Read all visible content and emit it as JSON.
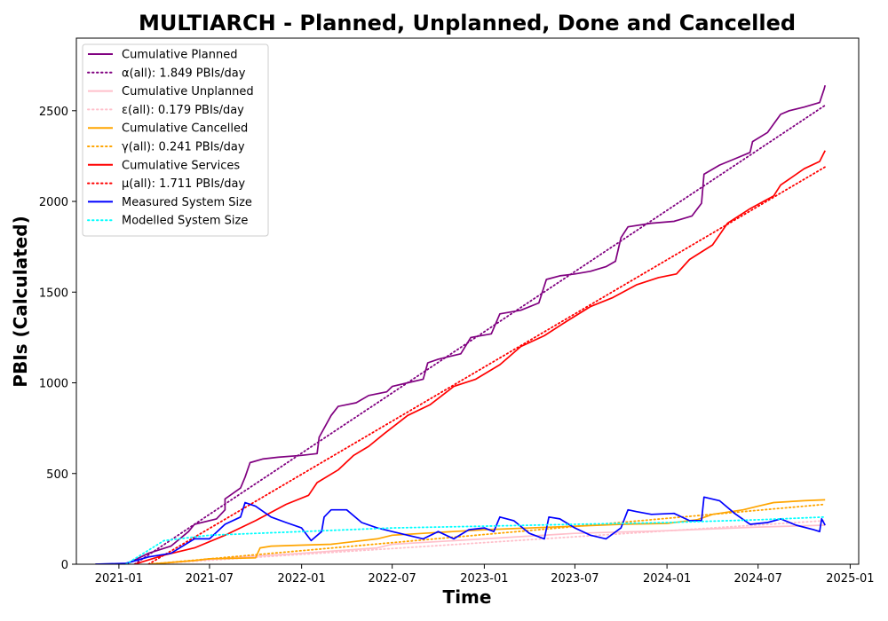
{
  "chart_data": {
    "type": "line",
    "title": "MULTIARCH - Planned, Unplanned, Done  and Cancelled",
    "xlabel": "Time",
    "ylabel": "PBIs (Calculated)",
    "xlim": [
      "2020-10-08",
      "2025-01-18"
    ],
    "ylim": [
      0,
      2900
    ],
    "x_ticks": [
      "2021-01",
      "2021-07",
      "2022-01",
      "2022-07",
      "2023-01",
      "2023-07",
      "2024-01",
      "2024-07",
      "2025-01"
    ],
    "y_ticks": [
      0,
      500,
      1000,
      1500,
      2000,
      2500
    ],
    "grid": false,
    "legend_position": "top-left",
    "series": [
      {
        "name": "Cumulative Planned",
        "style": "solid",
        "color": "#800080",
        "points": [
          [
            "2020-11-15",
            0
          ],
          [
            "2021-01-15",
            0
          ],
          [
            "2021-03-01",
            60
          ],
          [
            "2021-04-15",
            100
          ],
          [
            "2021-05-20",
            180
          ],
          [
            "2021-06-01",
            220
          ],
          [
            "2021-07-15",
            250
          ],
          [
            "2021-08-01",
            300
          ],
          [
            "2021-08-01",
            360
          ],
          [
            "2021-09-01",
            420
          ],
          [
            "2021-09-10",
            480
          ],
          [
            "2021-09-20",
            560
          ],
          [
            "2021-10-15",
            580
          ],
          [
            "2021-11-15",
            590
          ],
          [
            "2022-01-01",
            600
          ],
          [
            "2022-02-01",
            610
          ],
          [
            "2022-02-05",
            700
          ],
          [
            "2022-03-01",
            820
          ],
          [
            "2022-03-15",
            870
          ],
          [
            "2022-04-20",
            890
          ],
          [
            "2022-05-15",
            930
          ],
          [
            "2022-06-20",
            950
          ],
          [
            "2022-07-01",
            980
          ],
          [
            "2022-08-01",
            1000
          ],
          [
            "2022-09-01",
            1020
          ],
          [
            "2022-09-10",
            1110
          ],
          [
            "2022-10-01",
            1130
          ],
          [
            "2022-11-15",
            1160
          ],
          [
            "2022-12-05",
            1250
          ],
          [
            "2023-01-15",
            1270
          ],
          [
            "2023-02-01",
            1380
          ],
          [
            "2023-03-15",
            1400
          ],
          [
            "2023-04-20",
            1440
          ],
          [
            "2023-05-05",
            1570
          ],
          [
            "2023-06-01",
            1590
          ],
          [
            "2023-07-01",
            1600
          ],
          [
            "2023-08-01",
            1615
          ],
          [
            "2023-09-01",
            1640
          ],
          [
            "2023-09-20",
            1670
          ],
          [
            "2023-10-01",
            1800
          ],
          [
            "2023-10-15",
            1860
          ],
          [
            "2023-12-01",
            1880
          ],
          [
            "2024-01-15",
            1890
          ],
          [
            "2024-02-20",
            1920
          ],
          [
            "2024-03-10",
            1990
          ],
          [
            "2024-03-15",
            2150
          ],
          [
            "2024-04-15",
            2200
          ],
          [
            "2024-05-20",
            2240
          ],
          [
            "2024-06-15",
            2270
          ],
          [
            "2024-06-20",
            2330
          ],
          [
            "2024-07-20",
            2380
          ],
          [
            "2024-08-15",
            2480
          ],
          [
            "2024-09-01",
            2500
          ],
          [
            "2024-10-01",
            2520
          ],
          [
            "2024-11-01",
            2545
          ],
          [
            "2024-11-10",
            2620
          ],
          [
            "2024-11-12",
            2640
          ]
        ]
      },
      {
        "name": "α(all): 1.849 PBIs/day",
        "style": "dotted",
        "color": "#800080",
        "points": [
          [
            "2021-02-01",
            0
          ],
          [
            "2024-11-12",
            2530
          ]
        ]
      },
      {
        "name": "Cumulative Unplanned",
        "style": "solid",
        "color": "#ffc0cb",
        "points": [
          [
            "2021-03-01",
            0
          ],
          [
            "2021-06-01",
            20
          ],
          [
            "2021-09-01",
            40
          ],
          [
            "2022-01-01",
            60
          ],
          [
            "2022-06-01",
            90
          ],
          [
            "2022-07-01",
            110
          ],
          [
            "2023-01-01",
            140
          ],
          [
            "2023-07-01",
            170
          ],
          [
            "2024-01-01",
            185
          ],
          [
            "2024-07-01",
            205
          ],
          [
            "2024-11-12",
            215
          ]
        ]
      },
      {
        "name": "ε(all): 0.179 PBIs/day",
        "style": "dotted",
        "color": "#ffc0cb",
        "points": [
          [
            "2021-03-01",
            0
          ],
          [
            "2024-11-12",
            240
          ]
        ]
      },
      {
        "name": "Cumulative Cancelled",
        "style": "solid",
        "color": "#ffa500",
        "points": [
          [
            "2021-03-01",
            0
          ],
          [
            "2021-04-15",
            10
          ],
          [
            "2021-06-01",
            20
          ],
          [
            "2021-07-01",
            30
          ],
          [
            "2021-10-01",
            35
          ],
          [
            "2021-10-10",
            90
          ],
          [
            "2021-11-01",
            100
          ],
          [
            "2022-01-01",
            105
          ],
          [
            "2022-03-01",
            110
          ],
          [
            "2022-06-01",
            140
          ],
          [
            "2022-07-01",
            160
          ],
          [
            "2022-09-01",
            170
          ],
          [
            "2023-01-01",
            190
          ],
          [
            "2023-07-01",
            210
          ],
          [
            "2023-10-01",
            220
          ],
          [
            "2024-01-01",
            225
          ],
          [
            "2024-03-01",
            245
          ],
          [
            "2024-04-01",
            275
          ],
          [
            "2024-06-01",
            300
          ],
          [
            "2024-07-01",
            320
          ],
          [
            "2024-08-01",
            340
          ],
          [
            "2024-10-01",
            350
          ],
          [
            "2024-11-12",
            355
          ]
        ]
      },
      {
        "name": "γ(all): 0.241 PBIs/day",
        "style": "dotted",
        "color": "#ffa500",
        "points": [
          [
            "2021-03-01",
            0
          ],
          [
            "2024-11-12",
            330
          ]
        ]
      },
      {
        "name": "Cumulative Services",
        "style": "solid",
        "color": "#ff0000",
        "points": [
          [
            "2021-02-01",
            0
          ],
          [
            "2021-04-01",
            50
          ],
          [
            "2021-06-01",
            90
          ],
          [
            "2021-08-01",
            160
          ],
          [
            "2021-10-01",
            240
          ],
          [
            "2021-12-01",
            330
          ],
          [
            "2022-01-15",
            380
          ],
          [
            "2022-02-01",
            450
          ],
          [
            "2022-03-15",
            520
          ],
          [
            "2022-04-15",
            600
          ],
          [
            "2022-05-15",
            650
          ],
          [
            "2022-06-15",
            720
          ],
          [
            "2022-08-01",
            820
          ],
          [
            "2022-09-15",
            880
          ],
          [
            "2022-11-01",
            980
          ],
          [
            "2022-12-15",
            1020
          ],
          [
            "2023-02-01",
            1100
          ],
          [
            "2023-03-15",
            1200
          ],
          [
            "2023-05-01",
            1260
          ],
          [
            "2023-06-15",
            1340
          ],
          [
            "2023-08-01",
            1420
          ],
          [
            "2023-09-15",
            1470
          ],
          [
            "2023-11-01",
            1540
          ],
          [
            "2023-12-15",
            1580
          ],
          [
            "2024-01-20",
            1600
          ],
          [
            "2024-02-15",
            1680
          ],
          [
            "2024-04-01",
            1760
          ],
          [
            "2024-05-01",
            1880
          ],
          [
            "2024-06-15",
            1960
          ],
          [
            "2024-08-01",
            2030
          ],
          [
            "2024-08-15",
            2090
          ],
          [
            "2024-10-01",
            2180
          ],
          [
            "2024-11-01",
            2220
          ],
          [
            "2024-11-12",
            2280
          ]
        ]
      },
      {
        "name": "μ(all): 1.711 PBIs/day",
        "style": "dotted",
        "color": "#ff0000",
        "points": [
          [
            "2021-03-01",
            0
          ],
          [
            "2024-11-12",
            2190
          ]
        ]
      },
      {
        "name": "Measured System Size",
        "style": "solid",
        "color": "#0000ff",
        "points": [
          [
            "2020-11-15",
            0
          ],
          [
            "2021-01-15",
            5
          ],
          [
            "2021-03-01",
            40
          ],
          [
            "2021-04-15",
            60
          ],
          [
            "2021-06-01",
            140
          ],
          [
            "2021-07-01",
            140
          ],
          [
            "2021-08-01",
            220
          ],
          [
            "2021-09-01",
            260
          ],
          [
            "2021-09-10",
            340
          ],
          [
            "2021-10-01",
            320
          ],
          [
            "2021-11-01",
            260
          ],
          [
            "2021-12-01",
            230
          ],
          [
            "2022-01-01",
            200
          ],
          [
            "2022-01-20",
            130
          ],
          [
            "2022-02-10",
            180
          ],
          [
            "2022-02-15",
            260
          ],
          [
            "2022-03-01",
            300
          ],
          [
            "2022-04-01",
            300
          ],
          [
            "2022-05-01",
            230
          ],
          [
            "2022-06-01",
            200
          ],
          [
            "2022-07-01",
            180
          ],
          [
            "2022-08-01",
            160
          ],
          [
            "2022-09-01",
            140
          ],
          [
            "2022-10-01",
            180
          ],
          [
            "2022-11-01",
            140
          ],
          [
            "2022-12-01",
            190
          ],
          [
            "2023-01-01",
            200
          ],
          [
            "2023-01-20",
            180
          ],
          [
            "2023-02-01",
            260
          ],
          [
            "2023-03-01",
            240
          ],
          [
            "2023-04-01",
            170
          ],
          [
            "2023-05-01",
            140
          ],
          [
            "2023-05-10",
            260
          ],
          [
            "2023-06-01",
            250
          ],
          [
            "2023-07-01",
            200
          ],
          [
            "2023-08-01",
            160
          ],
          [
            "2023-09-01",
            140
          ],
          [
            "2023-10-01",
            200
          ],
          [
            "2023-10-15",
            300
          ],
          [
            "2023-11-01",
            290
          ],
          [
            "2023-12-01",
            275
          ],
          [
            "2024-01-15",
            280
          ],
          [
            "2024-02-15",
            240
          ],
          [
            "2024-03-10",
            240
          ],
          [
            "2024-03-15",
            370
          ],
          [
            "2024-04-15",
            350
          ],
          [
            "2024-05-15",
            280
          ],
          [
            "2024-06-15",
            220
          ],
          [
            "2024-07-20",
            230
          ],
          [
            "2024-08-15",
            250
          ],
          [
            "2024-09-15",
            215
          ],
          [
            "2024-10-20",
            190
          ],
          [
            "2024-11-01",
            180
          ],
          [
            "2024-11-05",
            250
          ],
          [
            "2024-11-12",
            215
          ]
        ]
      },
      {
        "name": "Modelled System Size",
        "style": "dotted",
        "color": "#00ffff",
        "points": [
          [
            "2021-01-15",
            0
          ],
          [
            "2021-04-01",
            130
          ],
          [
            "2021-07-01",
            160
          ],
          [
            "2022-01-01",
            180
          ],
          [
            "2022-07-01",
            200
          ],
          [
            "2023-01-01",
            210
          ],
          [
            "2023-07-01",
            220
          ],
          [
            "2024-01-01",
            230
          ],
          [
            "2024-07-01",
            245
          ],
          [
            "2024-11-12",
            260
          ]
        ]
      }
    ]
  }
}
